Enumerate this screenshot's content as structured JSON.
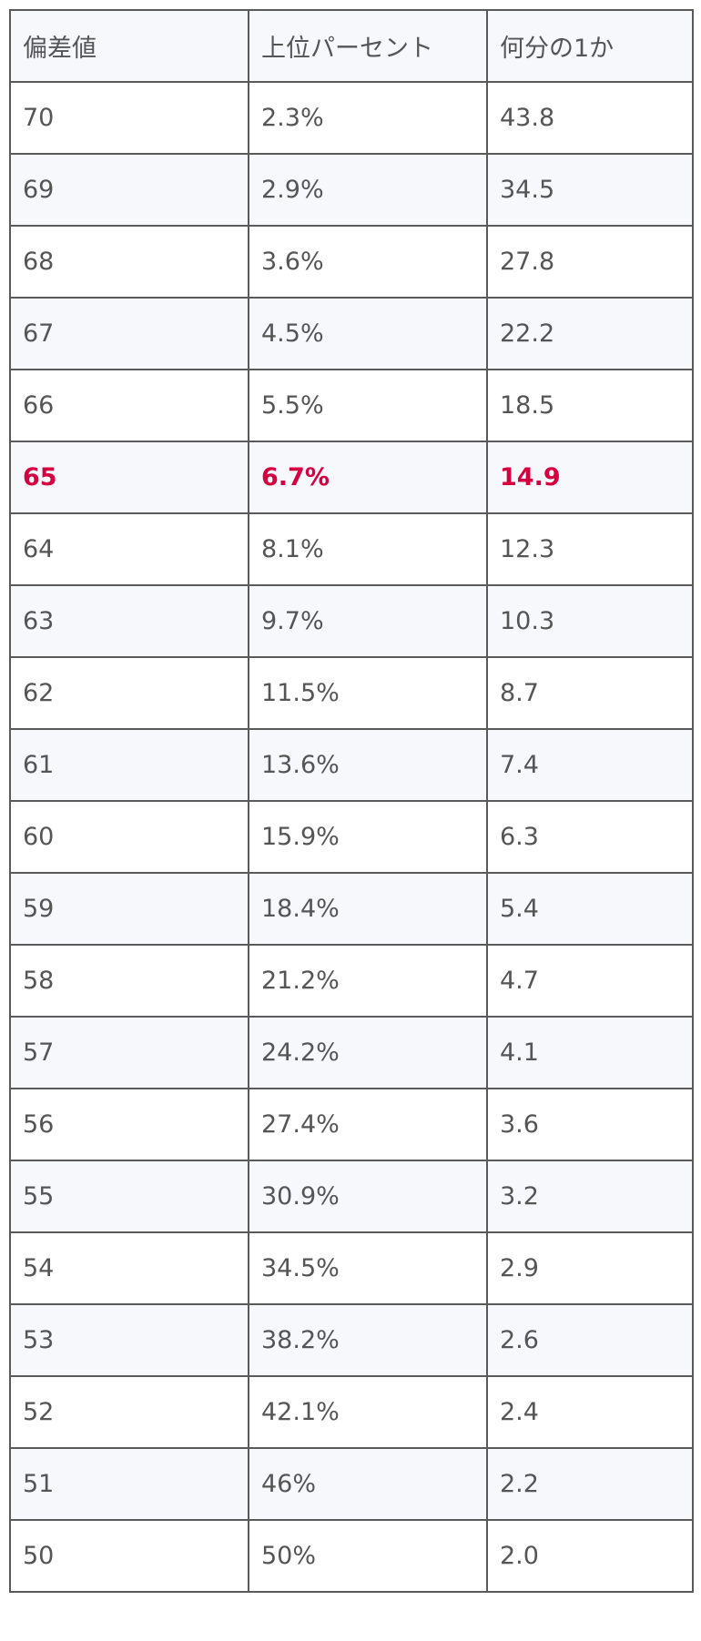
{
  "table": {
    "headers": [
      "偏差値",
      "上位パーセント",
      "何分の1か"
    ],
    "rows": [
      [
        "70",
        "2.3%",
        "43.8"
      ],
      [
        "69",
        "2.9%",
        "34.5"
      ],
      [
        "68",
        "3.6%",
        "27.8"
      ],
      [
        "67",
        "4.5%",
        "22.2"
      ],
      [
        "66",
        "5.5%",
        "18.5"
      ],
      [
        "65",
        "6.7%",
        "14.9"
      ],
      [
        "64",
        "8.1%",
        "12.3"
      ],
      [
        "63",
        "9.7%",
        "10.3"
      ],
      [
        "62",
        "11.5%",
        "8.7"
      ],
      [
        "61",
        "13.6%",
        "7.4"
      ],
      [
        "60",
        "15.9%",
        "6.3"
      ],
      [
        "59",
        "18.4%",
        "5.4"
      ],
      [
        "58",
        "21.2%",
        "4.7"
      ],
      [
        "57",
        "24.2%",
        "4.1"
      ],
      [
        "56",
        "27.4%",
        "3.6"
      ],
      [
        "55",
        "30.9%",
        "3.2"
      ],
      [
        "54",
        "34.5%",
        "2.9"
      ],
      [
        "53",
        "38.2%",
        "2.6"
      ],
      [
        "52",
        "42.1%",
        "2.4"
      ],
      [
        "51",
        "46%",
        "2.2"
      ],
      [
        "50",
        "50%",
        "2.0"
      ]
    ],
    "highlighted_row": "65"
  },
  "colors": {
    "highlight": "#d4003f",
    "text": "#555555",
    "border": "#5a5a5a",
    "stripe": "#f7f8fc"
  }
}
